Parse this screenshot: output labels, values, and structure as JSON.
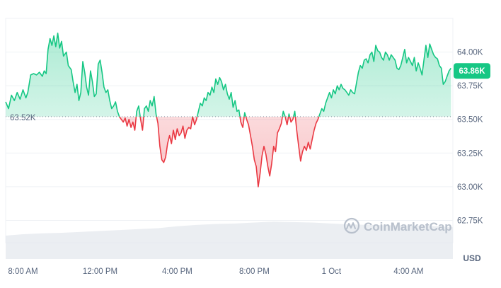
{
  "chart_data": {
    "type": "area",
    "title": "",
    "xlabel": "",
    "ylabel": "",
    "currency": "USD",
    "watermark": "CoinMarketCap",
    "baseline": 63520,
    "baseline_label": "63.52K",
    "current_value": 63860,
    "current_label": "63.86K",
    "ylim": [
      62600,
      64250
    ],
    "y_ticks": [
      {
        "value": 64000,
        "label": "64.00K"
      },
      {
        "value": 63750,
        "label": "63.75K"
      },
      {
        "value": 63500,
        "label": "63.50K"
      },
      {
        "value": 63250,
        "label": "63.25K"
      },
      {
        "value": 63000,
        "label": "63.00K"
      },
      {
        "value": 62750,
        "label": "62.75K"
      }
    ],
    "x_ticks": [
      {
        "value": 8,
        "label": "8:00 AM"
      },
      {
        "value": 12,
        "label": "12:00 PM"
      },
      {
        "value": 16,
        "label": "4:00 PM"
      },
      {
        "value": 20,
        "label": "8:00 PM"
      },
      {
        "value": 24,
        "label": "1 Oct"
      },
      {
        "value": 28,
        "label": "4:00 AM"
      }
    ],
    "xlim": [
      7.1,
      30.3
    ],
    "colors": {
      "up": "#16c784",
      "down": "#ea3943",
      "up_fill": "#16c784",
      "down_fill": "#ea3943",
      "axis_text": "#58667e",
      "grid": "#eff2f5",
      "volume": "#e4e8ee",
      "badge_bg": "#16c784",
      "badge_text": "#ffffff",
      "watermark": "#b8c0cc"
    },
    "series": [
      {
        "values": [
          [
            7.1,
            63630
          ],
          [
            7.25,
            63580
          ],
          [
            7.4,
            63680
          ],
          [
            7.55,
            63640
          ],
          [
            7.7,
            63700
          ],
          [
            7.85,
            63650
          ],
          [
            8.0,
            63720
          ],
          [
            8.15,
            63660
          ],
          [
            8.25,
            63700
          ],
          [
            8.4,
            63830
          ],
          [
            8.55,
            63840
          ],
          [
            8.7,
            63830
          ],
          [
            8.85,
            63850
          ],
          [
            9.0,
            63820
          ],
          [
            9.1,
            63860
          ],
          [
            9.2,
            63840
          ],
          [
            9.3,
            64020
          ],
          [
            9.4,
            64100
          ],
          [
            9.5,
            64050
          ],
          [
            9.6,
            64120
          ],
          [
            9.7,
            64040
          ],
          [
            9.8,
            64140
          ],
          [
            9.9,
            64030
          ],
          [
            10.0,
            64080
          ],
          [
            10.1,
            63970
          ],
          [
            10.25,
            64000
          ],
          [
            10.35,
            63900
          ],
          [
            10.5,
            63870
          ],
          [
            10.6,
            63780
          ],
          [
            10.7,
            63700
          ],
          [
            10.8,
            63760
          ],
          [
            10.9,
            63640
          ],
          [
            11.0,
            63700
          ],
          [
            11.1,
            63930
          ],
          [
            11.2,
            63850
          ],
          [
            11.3,
            63740
          ],
          [
            11.4,
            63680
          ],
          [
            11.5,
            63860
          ],
          [
            11.6,
            63780
          ],
          [
            11.7,
            63670
          ],
          [
            11.8,
            63690
          ],
          [
            11.9,
            63910
          ],
          [
            12.0,
            63940
          ],
          [
            12.1,
            63850
          ],
          [
            12.2,
            63740
          ],
          [
            12.3,
            63700
          ],
          [
            12.4,
            63720
          ],
          [
            12.5,
            63640
          ],
          [
            12.6,
            63580
          ],
          [
            12.7,
            63600
          ],
          [
            12.8,
            63630
          ],
          [
            12.9,
            63560
          ],
          [
            13.0,
            63520
          ],
          [
            13.1,
            63500
          ],
          [
            13.2,
            63480
          ],
          [
            13.3,
            63510
          ],
          [
            13.4,
            63450
          ],
          [
            13.5,
            63500
          ],
          [
            13.6,
            63440
          ],
          [
            13.7,
            63480
          ],
          [
            13.8,
            63420
          ],
          [
            13.9,
            63560
          ],
          [
            14.0,
            63600
          ],
          [
            14.1,
            63500
          ],
          [
            14.2,
            63420
          ],
          [
            14.3,
            63580
          ],
          [
            14.4,
            63600
          ],
          [
            14.5,
            63560
          ],
          [
            14.6,
            63640
          ],
          [
            14.7,
            63600
          ],
          [
            14.8,
            63670
          ],
          [
            14.9,
            63540
          ],
          [
            15.0,
            63470
          ],
          [
            15.1,
            63300
          ],
          [
            15.2,
            63200
          ],
          [
            15.3,
            63180
          ],
          [
            15.4,
            63220
          ],
          [
            15.5,
            63320
          ],
          [
            15.6,
            63380
          ],
          [
            15.7,
            63320
          ],
          [
            15.8,
            63420
          ],
          [
            15.9,
            63350
          ],
          [
            16.0,
            63430
          ],
          [
            16.1,
            63380
          ],
          [
            16.2,
            63400
          ],
          [
            16.3,
            63450
          ],
          [
            16.4,
            63360
          ],
          [
            16.5,
            63420
          ],
          [
            16.6,
            63440
          ],
          [
            16.7,
            63430
          ],
          [
            16.8,
            63520
          ],
          [
            16.9,
            63460
          ],
          [
            17.0,
            63500
          ],
          [
            17.1,
            63560
          ],
          [
            17.2,
            63620
          ],
          [
            17.3,
            63600
          ],
          [
            17.4,
            63660
          ],
          [
            17.5,
            63640
          ],
          [
            17.6,
            63700
          ],
          [
            17.7,
            63680
          ],
          [
            17.8,
            63740
          ],
          [
            17.9,
            63700
          ],
          [
            18.0,
            63800
          ],
          [
            18.1,
            63760
          ],
          [
            18.2,
            63810
          ],
          [
            18.3,
            63780
          ],
          [
            18.4,
            63720
          ],
          [
            18.5,
            63760
          ],
          [
            18.6,
            63690
          ],
          [
            18.7,
            63650
          ],
          [
            18.8,
            63700
          ],
          [
            18.9,
            63590
          ],
          [
            19.0,
            63640
          ],
          [
            19.1,
            63560
          ],
          [
            19.2,
            63570
          ],
          [
            19.3,
            63480
          ],
          [
            19.4,
            63440
          ],
          [
            19.5,
            63550
          ],
          [
            19.6,
            63500
          ],
          [
            19.7,
            63460
          ],
          [
            19.8,
            63380
          ],
          [
            19.9,
            63300
          ],
          [
            20.0,
            63200
          ],
          [
            20.1,
            63150
          ],
          [
            20.2,
            63000
          ],
          [
            20.3,
            63100
          ],
          [
            20.4,
            63230
          ],
          [
            20.5,
            63300
          ],
          [
            20.6,
            63240
          ],
          [
            20.7,
            63150
          ],
          [
            20.8,
            63080
          ],
          [
            20.9,
            63170
          ],
          [
            21.0,
            63300
          ],
          [
            21.1,
            63260
          ],
          [
            21.2,
            63400
          ],
          [
            21.3,
            63430
          ],
          [
            21.4,
            63470
          ],
          [
            21.5,
            63560
          ],
          [
            21.6,
            63520
          ],
          [
            21.7,
            63460
          ],
          [
            21.8,
            63540
          ],
          [
            21.9,
            63480
          ],
          [
            22.0,
            63500
          ],
          [
            22.1,
            63560
          ],
          [
            22.2,
            63420
          ],
          [
            22.3,
            63300
          ],
          [
            22.4,
            63190
          ],
          [
            22.5,
            63260
          ],
          [
            22.6,
            63300
          ],
          [
            22.7,
            63270
          ],
          [
            22.8,
            63330
          ],
          [
            22.9,
            63280
          ],
          [
            23.0,
            63350
          ],
          [
            23.1,
            63420
          ],
          [
            23.2,
            63470
          ],
          [
            23.3,
            63500
          ],
          [
            23.4,
            63540
          ],
          [
            23.5,
            63580
          ],
          [
            23.6,
            63560
          ],
          [
            23.7,
            63620
          ],
          [
            23.8,
            63660
          ],
          [
            23.9,
            63700
          ],
          [
            24.0,
            63660
          ],
          [
            24.1,
            63720
          ],
          [
            24.2,
            63690
          ],
          [
            24.3,
            63750
          ],
          [
            24.4,
            63720
          ],
          [
            24.5,
            63760
          ],
          [
            24.6,
            63730
          ],
          [
            24.7,
            63720
          ],
          [
            24.8,
            63700
          ],
          [
            24.9,
            63680
          ],
          [
            25.0,
            63720
          ],
          [
            25.1,
            63700
          ],
          [
            25.2,
            63690
          ],
          [
            25.3,
            63770
          ],
          [
            25.4,
            63850
          ],
          [
            25.5,
            63900
          ],
          [
            25.6,
            63880
          ],
          [
            25.7,
            63940
          ],
          [
            25.8,
            63950
          ],
          [
            25.9,
            63920
          ],
          [
            26.0,
            63980
          ],
          [
            26.1,
            64000
          ],
          [
            26.2,
            63930
          ],
          [
            26.3,
            64050
          ],
          [
            26.4,
            64010
          ],
          [
            26.5,
            64000
          ],
          [
            26.6,
            63960
          ],
          [
            26.7,
            63940
          ],
          [
            26.8,
            64000
          ],
          [
            26.9,
            63980
          ],
          [
            27.0,
            63940
          ],
          [
            27.1,
            63980
          ],
          [
            27.2,
            63960
          ],
          [
            27.3,
            63940
          ],
          [
            27.4,
            63880
          ],
          [
            27.5,
            63870
          ],
          [
            27.6,
            63900
          ],
          [
            27.7,
            63960
          ],
          [
            27.8,
            64020
          ],
          [
            27.9,
            63920
          ],
          [
            28.0,
            63960
          ],
          [
            28.1,
            63930
          ],
          [
            28.2,
            63900
          ],
          [
            28.3,
            63960
          ],
          [
            28.4,
            63860
          ],
          [
            28.5,
            63920
          ],
          [
            28.6,
            63880
          ],
          [
            28.7,
            63830
          ],
          [
            28.8,
            63940
          ],
          [
            28.9,
            64050
          ],
          [
            29.0,
            63960
          ],
          [
            29.1,
            64060
          ],
          [
            29.2,
            64020
          ],
          [
            29.3,
            63980
          ],
          [
            29.4,
            63960
          ],
          [
            29.5,
            63950
          ],
          [
            29.6,
            63900
          ],
          [
            29.7,
            63880
          ],
          [
            29.8,
            63760
          ],
          [
            29.9,
            63780
          ],
          [
            30.0,
            63820
          ],
          [
            30.1,
            63860
          ],
          [
            30.2,
            63880
          ]
        ]
      }
    ],
    "volume": [
      [
        7.1,
        0.5
      ],
      [
        8.0,
        0.53
      ],
      [
        9.0,
        0.55
      ],
      [
        10.0,
        0.56
      ],
      [
        11.0,
        0.58
      ],
      [
        12.0,
        0.6
      ],
      [
        13.0,
        0.62
      ],
      [
        14.0,
        0.64
      ],
      [
        15.0,
        0.66
      ],
      [
        16.0,
        0.7
      ],
      [
        17.0,
        0.73
      ],
      [
        18.0,
        0.75
      ],
      [
        19.0,
        0.76
      ],
      [
        20.0,
        0.78
      ],
      [
        21.0,
        0.8
      ],
      [
        22.0,
        0.79
      ],
      [
        23.0,
        0.78
      ],
      [
        24.0,
        0.76
      ],
      [
        25.0,
        0.74
      ],
      [
        26.0,
        0.73
      ],
      [
        27.0,
        0.72
      ],
      [
        28.0,
        0.72
      ],
      [
        29.0,
        0.71
      ],
      [
        30.3,
        0.68
      ]
    ]
  }
}
